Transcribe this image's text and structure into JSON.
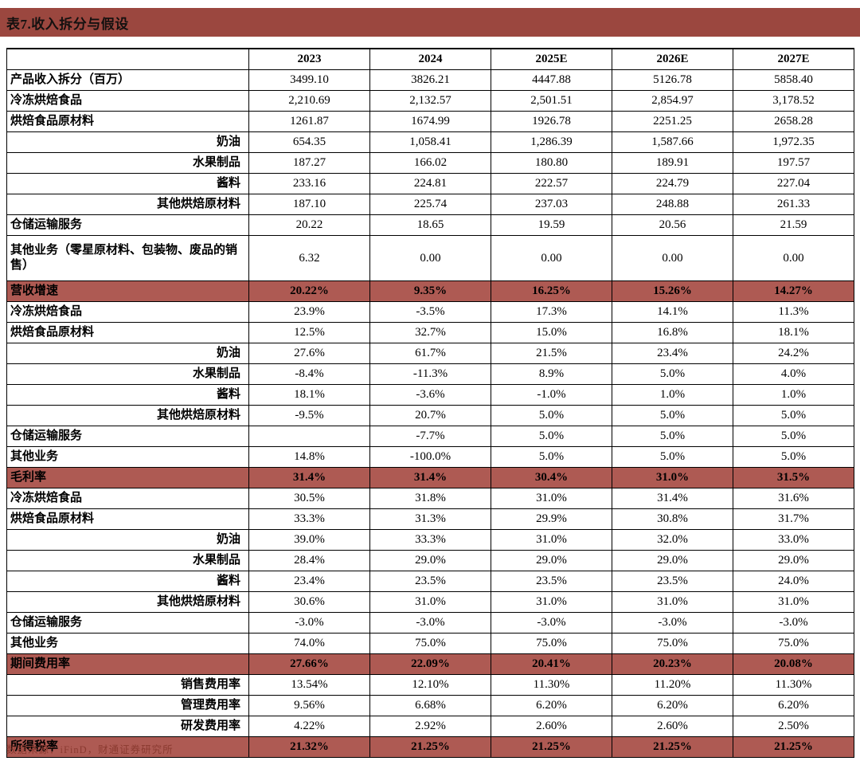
{
  "title": "表7.收入拆分与假设",
  "source": "数据来源：iFinD，财通证券研究所",
  "colors": {
    "title_bar": "#9b473f",
    "highlight_row": "#ae5a53",
    "source_text": "#8b3a30",
    "border": "#000000"
  },
  "table": {
    "corner": "",
    "years": [
      "2023",
      "2024",
      "2025E",
      "2026E",
      "2027E"
    ],
    "rows": [
      {
        "label": "产品收入拆分（百万）",
        "style": "normal",
        "tall": false,
        "values": [
          "3499.10",
          "3826.21",
          "4447.88",
          "5126.78",
          "5858.40"
        ]
      },
      {
        "label": "冷冻烘焙食品",
        "style": "normal",
        "tall": false,
        "values": [
          "2,210.69",
          "2,132.57",
          "2,501.51",
          "2,854.97",
          "3,178.52"
        ]
      },
      {
        "label": "烘焙食品原材料",
        "style": "normal",
        "tall": false,
        "values": [
          "1261.87",
          "1674.99",
          "1926.78",
          "2251.25",
          "2658.28"
        ]
      },
      {
        "label": "奶油",
        "style": "sub",
        "tall": false,
        "values": [
          "654.35",
          "1,058.41",
          "1,286.39",
          "1,587.66",
          "1,972.35"
        ]
      },
      {
        "label": "水果制品",
        "style": "sub",
        "tall": false,
        "values": [
          "187.27",
          "166.02",
          "180.80",
          "189.91",
          "197.57"
        ]
      },
      {
        "label": "酱料",
        "style": "sub",
        "tall": false,
        "values": [
          "233.16",
          "224.81",
          "222.57",
          "224.79",
          "227.04"
        ]
      },
      {
        "label": "其他烘焙原材料",
        "style": "sub",
        "tall": false,
        "values": [
          "187.10",
          "225.74",
          "237.03",
          "248.88",
          "261.33"
        ]
      },
      {
        "label": "仓储运输服务",
        "style": "normal",
        "tall": false,
        "values": [
          "20.22",
          "18.65",
          "19.59",
          "20.56",
          "21.59"
        ]
      },
      {
        "label": "其他业务（零星原材料、包装物、废品的销售）",
        "style": "normal",
        "tall": true,
        "values": [
          "6.32",
          "0.00",
          "0.00",
          "0.00",
          "0.00"
        ]
      },
      {
        "label": "营收增速",
        "style": "highlight",
        "tall": false,
        "values": [
          "20.22%",
          "9.35%",
          "16.25%",
          "15.26%",
          "14.27%"
        ]
      },
      {
        "label": "冷冻烘焙食品",
        "style": "normal",
        "tall": false,
        "values": [
          "23.9%",
          "-3.5%",
          "17.3%",
          "14.1%",
          "11.3%"
        ]
      },
      {
        "label": "烘焙食品原材料",
        "style": "normal",
        "tall": false,
        "values": [
          "12.5%",
          "32.7%",
          "15.0%",
          "16.8%",
          "18.1%"
        ]
      },
      {
        "label": "奶油",
        "style": "sub",
        "tall": false,
        "values": [
          "27.6%",
          "61.7%",
          "21.5%",
          "23.4%",
          "24.2%"
        ]
      },
      {
        "label": "水果制品",
        "style": "sub",
        "tall": false,
        "values": [
          "-8.4%",
          "-11.3%",
          "8.9%",
          "5.0%",
          "4.0%"
        ]
      },
      {
        "label": "酱料",
        "style": "sub",
        "tall": false,
        "values": [
          "18.1%",
          "-3.6%",
          "-1.0%",
          "1.0%",
          "1.0%"
        ]
      },
      {
        "label": "其他烘焙原材料",
        "style": "sub",
        "tall": false,
        "values": [
          "-9.5%",
          "20.7%",
          "5.0%",
          "5.0%",
          "5.0%"
        ]
      },
      {
        "label": "仓储运输服务",
        "style": "normal",
        "tall": false,
        "values": [
          "",
          "-7.7%",
          "5.0%",
          "5.0%",
          "5.0%"
        ]
      },
      {
        "label": "其他业务",
        "style": "normal",
        "tall": false,
        "values": [
          "14.8%",
          "-100.0%",
          "5.0%",
          "5.0%",
          "5.0%"
        ]
      },
      {
        "label": "毛利率",
        "style": "highlight",
        "tall": false,
        "values": [
          "31.4%",
          "31.4%",
          "30.4%",
          "31.0%",
          "31.5%"
        ]
      },
      {
        "label": "冷冻烘焙食品",
        "style": "normal",
        "tall": false,
        "values": [
          "30.5%",
          "31.8%",
          "31.0%",
          "31.4%",
          "31.6%"
        ]
      },
      {
        "label": "烘焙食品原材料",
        "style": "normal",
        "tall": false,
        "values": [
          "33.3%",
          "31.3%",
          "29.9%",
          "30.8%",
          "31.7%"
        ]
      },
      {
        "label": "奶油",
        "style": "sub",
        "tall": false,
        "values": [
          "39.0%",
          "33.3%",
          "31.0%",
          "32.0%",
          "33.0%"
        ]
      },
      {
        "label": "水果制品",
        "style": "sub",
        "tall": false,
        "values": [
          "28.4%",
          "29.0%",
          "29.0%",
          "29.0%",
          "29.0%"
        ]
      },
      {
        "label": "酱料",
        "style": "sub",
        "tall": false,
        "values": [
          "23.4%",
          "23.5%",
          "23.5%",
          "23.5%",
          "24.0%"
        ]
      },
      {
        "label": "其他烘焙原材料",
        "style": "sub",
        "tall": false,
        "values": [
          "30.6%",
          "31.0%",
          "31.0%",
          "31.0%",
          "31.0%"
        ]
      },
      {
        "label": "仓储运输服务",
        "style": "normal",
        "tall": false,
        "values": [
          "-3.0%",
          "-3.0%",
          "-3.0%",
          "-3.0%",
          "-3.0%"
        ]
      },
      {
        "label": "其他业务",
        "style": "normal",
        "tall": false,
        "values": [
          "74.0%",
          "75.0%",
          "75.0%",
          "75.0%",
          "75.0%"
        ]
      },
      {
        "label": "期间费用率",
        "style": "highlight",
        "tall": false,
        "values": [
          "27.66%",
          "22.09%",
          "20.41%",
          "20.23%",
          "20.08%"
        ]
      },
      {
        "label": "销售费用率",
        "style": "sub",
        "tall": false,
        "values": [
          "13.54%",
          "12.10%",
          "11.30%",
          "11.20%",
          "11.30%"
        ]
      },
      {
        "label": "管理费用率",
        "style": "sub",
        "tall": false,
        "values": [
          "9.56%",
          "6.68%",
          "6.20%",
          "6.20%",
          "6.20%"
        ]
      },
      {
        "label": "研发费用率",
        "style": "sub",
        "tall": false,
        "values": [
          "4.22%",
          "2.92%",
          "2.60%",
          "2.60%",
          "2.50%"
        ]
      },
      {
        "label": "所得税率",
        "style": "highlight",
        "tall": false,
        "values": [
          "21.32%",
          "21.25%",
          "21.25%",
          "21.25%",
          "21.25%"
        ]
      }
    ]
  }
}
